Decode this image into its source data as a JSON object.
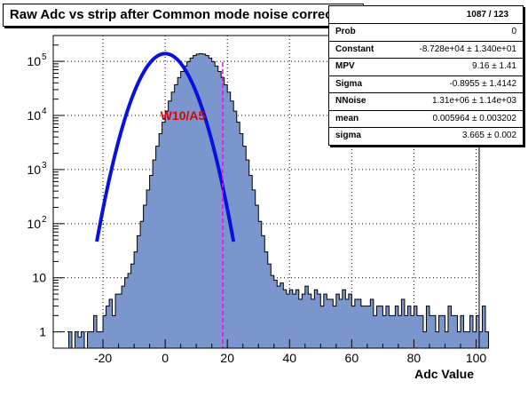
{
  "title": "Raw Adc vs strip after Common mode noise correction",
  "annotation": "W10/A5",
  "stats": {
    "header": "1087 / 123",
    "rows": [
      {
        "key": "Prob",
        "value": "0"
      },
      {
        "key": "Constant",
        "value": "-8.728e+04 ± 1.340e+01"
      },
      {
        "key": "MPV",
        "value": "9.16 ± 1.41"
      },
      {
        "key": "Sigma",
        "value": "-0.8955 ± 1.4142"
      },
      {
        "key": "NNoise",
        "value": "1.31e+06 ± 1.14e+03"
      },
      {
        "key": "mean",
        "value": "0.005964 ± 0.003202"
      },
      {
        "key": "sigma",
        "value": "3.665 ± 0.002"
      }
    ]
  },
  "chart_data": {
    "type": "area",
    "xlabel": "Adc Value",
    "ylabel": "",
    "xlim": [
      -36,
      101
    ],
    "ylim": [
      0.5,
      300000
    ],
    "log_y": true,
    "grid": true,
    "x_ticks": [
      -20,
      0,
      20,
      40,
      60,
      80,
      100
    ],
    "y_ticks": [
      {
        "value": 1,
        "label": "1"
      },
      {
        "value": 10,
        "label": "10"
      },
      {
        "value": 100,
        "label": "10",
        "exp": "2"
      },
      {
        "value": 1000,
        "label": "10",
        "exp": "3"
      },
      {
        "value": 10000,
        "label": "10",
        "exp": "4"
      },
      {
        "value": 100000,
        "label": "10",
        "exp": "5"
      }
    ],
    "histogram": {
      "bin_width": 1,
      "x_start": -36,
      "counts": [
        0,
        0,
        0,
        0,
        0,
        1,
        0,
        1,
        0.8,
        1,
        0,
        1,
        1,
        2,
        1,
        1,
        2,
        3,
        4,
        2,
        5,
        5,
        7,
        10,
        12,
        18,
        30,
        60,
        110,
        220,
        420,
        780,
        1500,
        2700,
        4600,
        7500,
        12000,
        18500,
        27000,
        37000,
        50000,
        65000,
        82000,
        99000,
        115000,
        128000,
        136000,
        139000,
        136000,
        128000,
        115000,
        99000,
        82000,
        65000,
        50000,
        37000,
        27000,
        18500,
        12000,
        7500,
        4600,
        2700,
        1500,
        780,
        420,
        220,
        110,
        60,
        30,
        18,
        11,
        9,
        7,
        8,
        6,
        5,
        6,
        5,
        6,
        4,
        5,
        7,
        5,
        4,
        6,
        5,
        3,
        5,
        4,
        4,
        3,
        5,
        4,
        6,
        4,
        5,
        3,
        4,
        4,
        3,
        3,
        3,
        4,
        2,
        3,
        3,
        2,
        3,
        2,
        2,
        3,
        2,
        4,
        2,
        3,
        2,
        3,
        2,
        2,
        1,
        3,
        2,
        2,
        1,
        2,
        2,
        1,
        3,
        2,
        2,
        1,
        2,
        1,
        1,
        2,
        1,
        2,
        1,
        3,
        1
      ]
    },
    "fit_curve": {
      "label": "Gaussian fit",
      "peak": 139000,
      "mean": 0,
      "sigma": 5.5,
      "color": "#0a10e0"
    },
    "cut_line": {
      "x": 18.5,
      "color": "#e010e0"
    },
    "colors": {
      "fill": "#7b96cc",
      "outline": "#000000",
      "annotation": "#e00000"
    }
  }
}
